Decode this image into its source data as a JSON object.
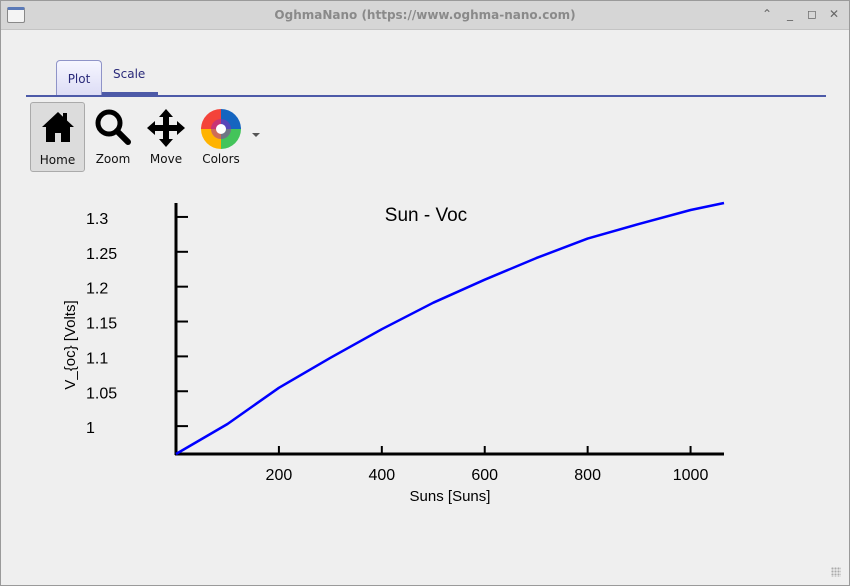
{
  "window": {
    "title": "OghmaNano (https://www.oghma-nano.com)"
  },
  "tabs": [
    {
      "label": "Plot",
      "active": true
    },
    {
      "label": "Scale",
      "active": false
    }
  ],
  "toolbar": [
    {
      "label": "Home",
      "icon": "home-icon",
      "selected": true
    },
    {
      "label": "Zoom",
      "icon": "magnifier-icon"
    },
    {
      "label": "Move",
      "icon": "move-arrows-icon"
    },
    {
      "label": "Colors",
      "icon": "color-wheel-icon"
    }
  ],
  "chart_data": {
    "type": "line",
    "title": "Sun - Voc",
    "xlabel": "Suns [Suns]",
    "ylabel": "V_{oc} [Volts]",
    "xlim": [
      0,
      1065
    ],
    "ylim": [
      0.96,
      1.32
    ],
    "xticks": [
      200,
      400,
      600,
      800,
      1000
    ],
    "yticks": [
      1,
      1.05,
      1.1,
      1.15,
      1.2,
      1.25,
      1.3
    ],
    "xtick_labels": [
      "200",
      "400",
      "600",
      "800",
      "1000"
    ],
    "ytick_labels": [
      "1",
      "1.05",
      "1.1",
      "1.15",
      "1.2",
      "1.25",
      "1.3"
    ],
    "grid": false,
    "color": "#0000ff",
    "x": [
      0,
      100,
      200,
      300,
      400,
      500,
      600,
      700,
      800,
      900,
      1000,
      1065
    ],
    "y": [
      0.96,
      1.003,
      1.055,
      1.098,
      1.139,
      1.177,
      1.21,
      1.241,
      1.269,
      1.29,
      1.31,
      1.32
    ]
  }
}
